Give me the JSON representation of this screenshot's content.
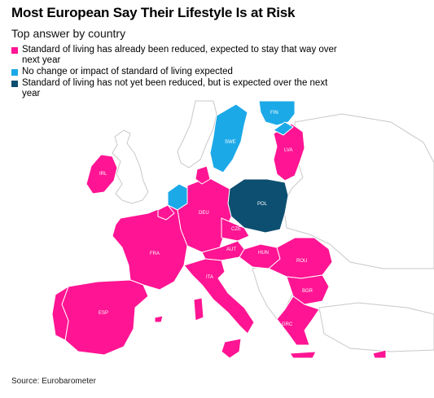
{
  "title": "Most European Say Their Lifestyle Is at Risk",
  "subtitle": "Top answer by country",
  "legend": [
    {
      "label": "Standard of living has already been reduced, expected to stay that way over next year",
      "color": "#ff1493"
    },
    {
      "label": "No change or impact of standard of living expected",
      "color": "#1ba9e8"
    },
    {
      "label": "Standard of living has not yet been reduced, but is expected over the next year",
      "color": "#0d4f71"
    }
  ],
  "map": {
    "countries": [
      {
        "code": "FIN",
        "category": "No change or impact of standard of living expected"
      },
      {
        "code": "SWE",
        "category": "No change or impact of standard of living expected"
      },
      {
        "code": "LVA",
        "category": "Standard of living has already been reduced, expected to stay that way over next year"
      },
      {
        "code": "IRL",
        "category": "Standard of living has already been reduced, expected to stay that way over next year"
      },
      {
        "code": "POL",
        "category": "Standard of living has not yet been reduced, but is expected over the next year"
      },
      {
        "code": "DEU",
        "category": "Standard of living has already been reduced, expected to stay that way over next year"
      },
      {
        "code": "CZE",
        "category": "Standard of living has already been reduced, expected to stay that way over next year"
      },
      {
        "code": "FRA",
        "category": "Standard of living has already been reduced, expected to stay that way over next year"
      },
      {
        "code": "AUT",
        "category": "Standard of living has already been reduced, expected to stay that way over next year"
      },
      {
        "code": "HUN",
        "category": "Standard of living has already been reduced, expected to stay that way over next year"
      },
      {
        "code": "ROU",
        "category": "Standard of living has already been reduced, expected to stay that way over next year"
      },
      {
        "code": "ITA",
        "category": "Standard of living has already been reduced, expected to stay that way over next year"
      },
      {
        "code": "BGR",
        "category": "Standard of living has already been reduced, expected to stay that way over next year"
      },
      {
        "code": "ESP",
        "category": "Standard of living has already been reduced, expected to stay that way over next year"
      },
      {
        "code": "GRC",
        "category": "Standard of living has already been reduced, expected to stay that way over next year"
      }
    ],
    "colors": {
      "outline": "#c8c8c8",
      "non_eu": "#ffffff"
    }
  },
  "source": "Source: Eurobarometer"
}
